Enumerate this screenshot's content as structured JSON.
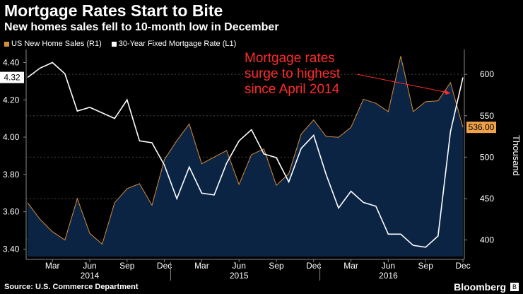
{
  "header": {
    "title": "Mortgage Rates Start to Bite",
    "subtitle": "New homes sales fell to 10-month low in December"
  },
  "legend": [
    {
      "label": "US New Home Sales (R1)",
      "color": "#d68e3a"
    },
    {
      "label": "30-Year Fixed Mortgage Rate (L1)",
      "color": "#ffffff"
    }
  ],
  "footer": {
    "source": "Source: U.S. Commerce Department",
    "brand": "Bloomberg",
    "brand_icon": "bloomberg-logo-icon"
  },
  "chart_data": {
    "type": "line",
    "x_ticks": [
      "Mar",
      "Jun",
      "Sep",
      "Dec",
      "Mar",
      "Jun",
      "Sep",
      "Dec",
      "Mar",
      "Jun",
      "Sep",
      "Dec"
    ],
    "x_years": [
      "2014",
      "2015",
      "2016"
    ],
    "x": [
      "2014-01",
      "2014-02",
      "2014-03",
      "2014-04",
      "2014-05",
      "2014-06",
      "2014-07",
      "2014-08",
      "2014-09",
      "2014-10",
      "2014-11",
      "2014-12",
      "2015-01",
      "2015-02",
      "2015-03",
      "2015-04",
      "2015-05",
      "2015-06",
      "2015-07",
      "2015-08",
      "2015-09",
      "2015-10",
      "2015-11",
      "2015-12",
      "2016-01",
      "2016-02",
      "2016-03",
      "2016-04",
      "2016-05",
      "2016-06",
      "2016-07",
      "2016-08",
      "2016-09",
      "2016-10",
      "2016-11",
      "2016-12"
    ],
    "left_axis": {
      "ticks": [
        "3.40",
        "3.60",
        "3.80",
        "4.00",
        "4.20",
        "4.40"
      ],
      "ylim": [
        3.36,
        4.47
      ]
    },
    "right_axis": {
      "ticks": [
        "400",
        "450",
        "500",
        "550",
        "600"
      ],
      "ylim": [
        380,
        630
      ],
      "label": "Thousand"
    },
    "series": [
      {
        "name": "US New Home Sales (R1)",
        "axis": "right",
        "color": "#d68e3a",
        "fill": "#0c2444",
        "last_label": "536.00",
        "values": [
          445,
          425,
          410,
          400,
          450,
          408,
          395,
          445,
          462,
          468,
          442,
          497,
          520,
          540,
          492,
          500,
          508,
          467,
          503,
          510,
          466,
          480,
          528,
          545,
          525,
          524,
          536,
          570,
          565,
          555,
          622,
          555,
          567,
          568,
          590,
          536
        ]
      },
      {
        "name": "30-Year Fixed Mortgage Rate (L1)",
        "axis": "left",
        "color": "#ffffff",
        "last_label": "4.32",
        "values": [
          4.32,
          4.37,
          4.4,
          4.34,
          4.14,
          4.16,
          4.13,
          4.1,
          4.2,
          3.98,
          3.97,
          3.85,
          3.67,
          3.84,
          3.7,
          3.69,
          3.86,
          3.98,
          4.04,
          3.91,
          3.89,
          3.76,
          3.94,
          4.01,
          3.8,
          3.62,
          3.71,
          3.65,
          3.63,
          3.48,
          3.48,
          3.42,
          3.41,
          3.47,
          4.03,
          4.32
        ]
      }
    ],
    "annotation": {
      "text": [
        "Mortgage rates",
        "surge to highest",
        "since April 2014"
      ],
      "color": "#ff2a2a"
    }
  }
}
